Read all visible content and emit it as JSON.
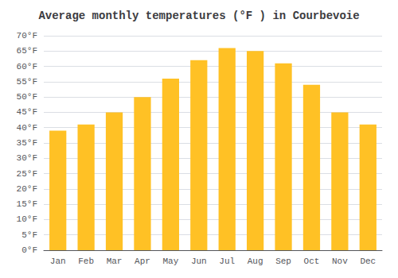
{
  "chart_data": {
    "type": "bar",
    "title": "Average monthly temperatures (°F ) in Courbevoie",
    "categories": [
      "Jan",
      "Feb",
      "Mar",
      "Apr",
      "May",
      "Jun",
      "Jul",
      "Aug",
      "Sep",
      "Oct",
      "Nov",
      "Dec"
    ],
    "values": [
      39,
      41,
      45,
      50,
      56,
      62,
      66,
      65,
      61,
      54,
      45,
      41
    ],
    "color": "#FFC125",
    "ylim": [
      0,
      70
    ],
    "yticks": [
      {
        "value": 0,
        "label": "0°F"
      },
      {
        "value": 5,
        "label": "5°F"
      },
      {
        "value": 10,
        "label": "10°F"
      },
      {
        "value": 15,
        "label": "15°F"
      },
      {
        "value": 20,
        "label": "20°F"
      },
      {
        "value": 25,
        "label": "25°F"
      },
      {
        "value": 30,
        "label": "30°F"
      },
      {
        "value": 35,
        "label": "35°F"
      },
      {
        "value": 40,
        "label": "40°F"
      },
      {
        "value": 45,
        "label": "45°F"
      },
      {
        "value": 50,
        "label": "50°F"
      },
      {
        "value": 55,
        "label": "55°F"
      },
      {
        "value": 60,
        "label": "60°F"
      },
      {
        "value": 65,
        "label": "65°F"
      },
      {
        "value": 70,
        "label": "70°F"
      }
    ],
    "grid": true
  }
}
